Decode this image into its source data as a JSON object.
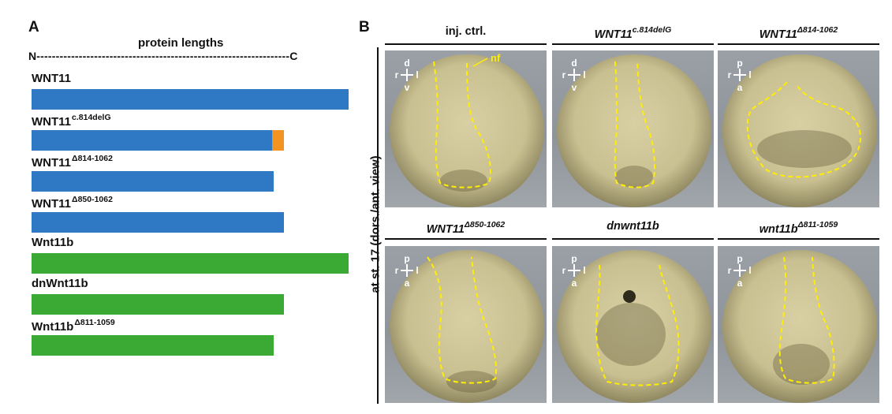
{
  "panel_a": {
    "letter": "A",
    "axis_line": "N------------------------------------------------------------------C",
    "axis_title": "protein lengths",
    "proteins": [
      {
        "label": "WNT11",
        "sup": "",
        "length_fraction": 1.0,
        "orange_fraction": 0,
        "color": "#2f78c3"
      },
      {
        "label": "WNT11",
        "sup": "c.814delG",
        "length_fraction": 0.797,
        "orange_fraction": 0.037,
        "color": "#2f78c3"
      },
      {
        "label": "WNT11",
        "sup": "Δ814-1062",
        "length_fraction": 0.763,
        "orange_fraction": 0,
        "color": "#2f78c3"
      },
      {
        "label": "WNT11",
        "sup": "Δ850-1062",
        "length_fraction": 0.797,
        "orange_fraction": 0,
        "color": "#2f78c3"
      },
      {
        "label": "Wnt11b",
        "sup": "",
        "length_fraction": 1.0,
        "orange_fraction": 0,
        "color": "#3aaa35"
      },
      {
        "label": "dnWnt11b",
        "sup": "",
        "length_fraction": 0.797,
        "orange_fraction": 0,
        "color": "#3aaa35"
      },
      {
        "label": "Wnt11b",
        "sup": "Δ811-1059",
        "length_fraction": 0.763,
        "orange_fraction": 0,
        "color": "#3aaa35"
      }
    ],
    "colors": {
      "human": "#2f78c3",
      "frog": "#3aaa35",
      "frameshift": "#f39322"
    }
  },
  "panel_b": {
    "letter": "B",
    "side_label": "at st. 17 (dors./ant. view)",
    "nf_label": "nf",
    "columns": [
      {
        "base": "inj. ctrl.",
        "sup": "",
        "italic": false,
        "orient": {
          "top": "d",
          "bottom": "v",
          "left": "r",
          "right": "l"
        }
      },
      {
        "base": "WNT11",
        "sup": "c.814delG",
        "italic": true,
        "orient": {
          "top": "d",
          "bottom": "v",
          "left": "r",
          "right": "l"
        }
      },
      {
        "base": "WNT11",
        "sup": "Δ814-1062",
        "italic": true,
        "orient": {
          "top": "p",
          "bottom": "a",
          "left": "r",
          "right": "l"
        }
      },
      {
        "base": "WNT11",
        "sup": "Δ850-1062",
        "italic": true,
        "orient": {
          "top": "p",
          "bottom": "a",
          "left": "r",
          "right": "l"
        }
      },
      {
        "base": "dnwnt11b",
        "sup": "",
        "italic": true,
        "orient": {
          "top": "p",
          "bottom": "a",
          "left": "r",
          "right": "l"
        }
      },
      {
        "base": "wnt11b",
        "sup": "Δ811-1059",
        "italic": true,
        "orient": {
          "top": "p",
          "bottom": "a",
          "left": "r",
          "right": "l"
        }
      }
    ],
    "colors": {
      "outline": "#ffee00",
      "orient": "#ffffff",
      "embryo": "#c9c091"
    }
  }
}
